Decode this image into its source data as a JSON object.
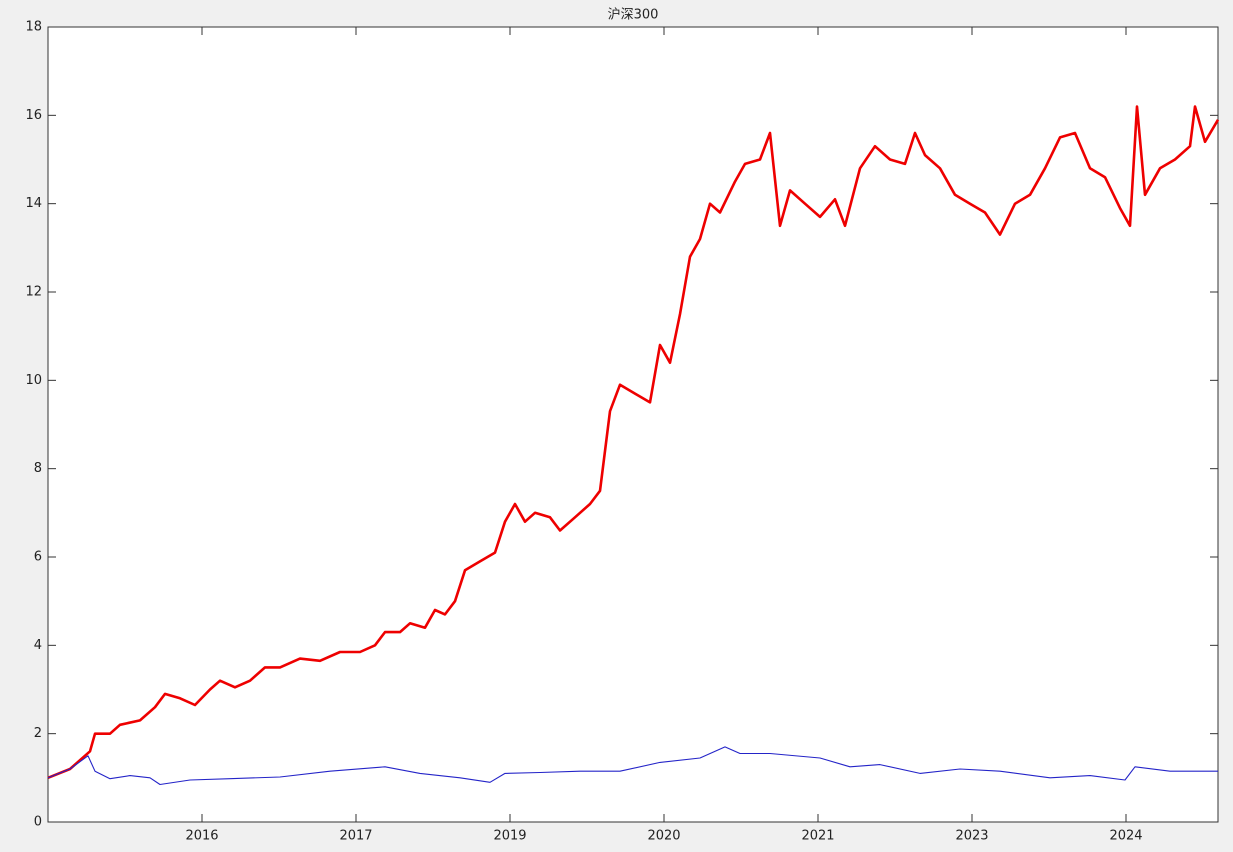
{
  "chart_data": {
    "type": "line",
    "title": "沪深300",
    "xlim": [
      0,
      1170
    ],
    "xticks": [
      {
        "value": 154,
        "label": "2016"
      },
      {
        "value": 308,
        "label": "2017"
      },
      {
        "value": 462,
        "label": "2019"
      },
      {
        "value": 616,
        "label": "2020"
      },
      {
        "value": 770,
        "label": "2021"
      },
      {
        "value": 924,
        "label": "2023"
      },
      {
        "value": 1078,
        "label": "2024"
      }
    ],
    "ylim": [
      0,
      18
    ],
    "yticks": [
      0,
      2,
      4,
      6,
      8,
      10,
      12,
      14,
      16,
      18
    ],
    "grid": false,
    "series": [
      {
        "color": "#ee0000",
        "x": [
          0,
          22,
          42,
          47,
          62,
          72,
          92,
          107,
          117,
          132,
          147,
          162,
          172,
          187,
          202,
          217,
          232,
          252,
          272,
          292,
          312,
          327,
          337,
          352,
          362,
          377,
          387,
          397,
          407,
          417,
          432,
          447,
          457,
          467,
          477,
          487,
          502,
          512,
          527,
          542,
          552,
          562,
          572,
          587,
          602,
          612,
          622,
          632,
          642,
          652,
          662,
          672,
          687,
          697,
          712,
          722,
          732,
          742,
          757,
          772,
          787,
          797,
          812,
          827,
          842,
          857,
          867,
          877,
          892,
          907,
          922,
          937,
          952,
          967,
          982,
          997,
          1012,
          1027,
          1042,
          1057,
          1072,
          1082,
          1089,
          1097,
          1112,
          1127,
          1142,
          1147,
          1157,
          1170
        ],
        "values": [
          1.0,
          1.2,
          1.6,
          2.0,
          2.0,
          2.2,
          2.3,
          2.6,
          2.9,
          2.8,
          2.65,
          3.0,
          3.2,
          3.05,
          3.2,
          3.5,
          3.5,
          3.7,
          3.65,
          3.85,
          3.85,
          4.0,
          4.3,
          4.3,
          4.5,
          4.4,
          4.8,
          4.7,
          5.0,
          5.7,
          5.9,
          6.1,
          6.8,
          7.2,
          6.8,
          7.0,
          6.9,
          6.6,
          6.9,
          7.2,
          7.5,
          9.3,
          9.9,
          9.7,
          9.5,
          10.8,
          10.4,
          11.5,
          12.8,
          13.2,
          14.0,
          13.8,
          14.5,
          14.9,
          15.0,
          15.6,
          13.5,
          14.3,
          14.0,
          13.7,
          14.1,
          13.5,
          14.8,
          15.3,
          15.0,
          14.9,
          15.6,
          15.1,
          14.8,
          14.2,
          14.0,
          13.8,
          13.3,
          14.0,
          14.2,
          14.8,
          15.5,
          15.6,
          14.8,
          14.6,
          13.9,
          13.5,
          16.2,
          14.2,
          14.8,
          15.0,
          15.3,
          16.2,
          15.4,
          15.9
        ]
      },
      {
        "color": "#2424c8",
        "x": [
          0,
          22,
          40,
          47,
          62,
          82,
          102,
          112,
          142,
          182,
          232,
          282,
          337,
          372,
          412,
          442,
          457,
          492,
          532,
          572,
          612,
          652,
          677,
          692,
          722,
          772,
          802,
          832,
          872,
          912,
          952,
          1002,
          1042,
          1077,
          1087,
          1122,
          1170
        ],
        "values": [
          1.0,
          1.2,
          1.5,
          1.15,
          0.98,
          1.05,
          1.0,
          0.85,
          0.95,
          0.98,
          1.02,
          1.15,
          1.25,
          1.1,
          1.0,
          0.9,
          1.1,
          1.12,
          1.15,
          1.15,
          1.35,
          1.45,
          1.7,
          1.55,
          1.55,
          1.45,
          1.25,
          1.3,
          1.1,
          1.2,
          1.15,
          1.0,
          1.05,
          0.95,
          1.25,
          1.15,
          1.15
        ]
      }
    ]
  }
}
